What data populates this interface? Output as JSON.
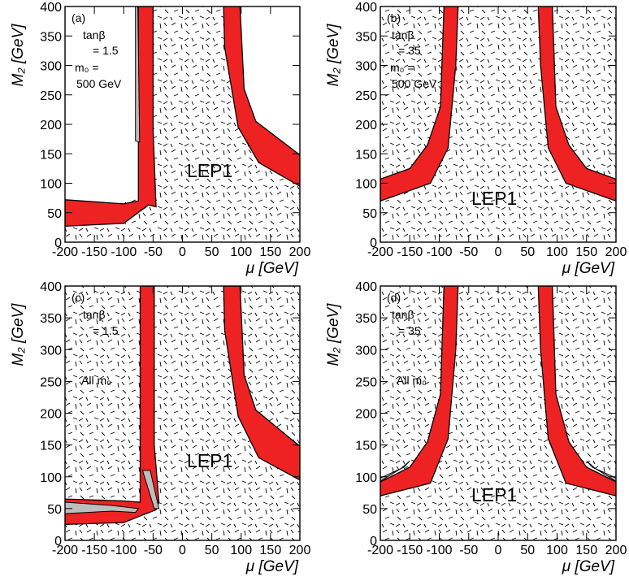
{
  "chart_data": [
    {
      "type": "area",
      "panel_label": "(a)",
      "notes": [
        "tanβ",
        "= 1.5",
        "m₀ =",
        "500 GeV"
      ],
      "region_label": "LEP1",
      "xlabel": "μ [GeV]",
      "ylabel": "M₂ [GeV]",
      "xlim": [
        -200,
        200
      ],
      "ylim": [
        0,
        400
      ],
      "xticks": [
        -200,
        -150,
        -100,
        -50,
        0,
        50,
        100,
        150,
        200
      ],
      "yticks": [
        0,
        50,
        100,
        150,
        200,
        250,
        300,
        350,
        400
      ],
      "lep1_region": [
        [
          -200,
          70
        ],
        [
          -100,
          67
        ],
        [
          -75,
          75
        ],
        [
          -75,
          400
        ],
        [
          80,
          400
        ],
        [
          85,
          300
        ],
        [
          95,
          200
        ],
        [
          130,
          140
        ],
        [
          200,
          95
        ],
        [
          200,
          0
        ],
        [
          -200,
          0
        ]
      ],
      "red_bands": [
        [
          [
            -200,
            72
          ],
          [
            -100,
            65
          ],
          [
            -75,
            70
          ],
          [
            -75,
            400
          ],
          [
            -50,
            400
          ],
          [
            -50,
            190
          ],
          [
            -45,
            60
          ],
          [
            -58,
            63
          ],
          [
            -100,
            32
          ],
          [
            -200,
            27
          ]
        ],
        [
          [
            70,
            400
          ],
          [
            98,
            400
          ],
          [
            105,
            260
          ],
          [
            125,
            205
          ],
          [
            200,
            148
          ],
          [
            200,
            95
          ],
          [
            130,
            135
          ],
          [
            95,
            195
          ],
          [
            72,
            330
          ]
        ]
      ],
      "grey_regions": [
        [
          [
            -80,
            400
          ],
          [
            -76,
            400
          ],
          [
            -73,
            170
          ],
          [
            -80,
            172
          ]
        ]
      ]
    },
    {
      "type": "area",
      "panel_label": "(b)",
      "notes": [
        "tanβ",
        "= 35",
        "m₀ =",
        "500 GeV"
      ],
      "region_label": "LEP1",
      "xlabel": "μ [GeV]",
      "ylabel": "M₂ [GeV]",
      "xlim": [
        -200,
        200
      ],
      "ylim": [
        0,
        400
      ],
      "xticks": [
        -200,
        -150,
        -100,
        -50,
        0,
        50,
        100,
        150,
        200
      ],
      "yticks": [
        0,
        50,
        100,
        150,
        200,
        250,
        300,
        350,
        400
      ],
      "red_bands": [
        [
          [
            -200,
            107
          ],
          [
            -150,
            125
          ],
          [
            -120,
            165
          ],
          [
            -98,
            230
          ],
          [
            -92,
            400
          ],
          [
            -68,
            400
          ],
          [
            -72,
            300
          ],
          [
            -85,
            160
          ],
          [
            -115,
            100
          ],
          [
            -200,
            70
          ]
        ],
        [
          [
            200,
            107
          ],
          [
            150,
            125
          ],
          [
            120,
            165
          ],
          [
            98,
            230
          ],
          [
            92,
            400
          ],
          [
            68,
            400
          ],
          [
            72,
            300
          ],
          [
            85,
            160
          ],
          [
            115,
            100
          ],
          [
            200,
            70
          ]
        ]
      ],
      "grey_regions": []
    },
    {
      "type": "area",
      "panel_label": "(c)",
      "notes": [
        "tanβ",
        "= 1.5",
        "All m₀"
      ],
      "region_label": "LEP1",
      "xlabel": "μ [GeV]",
      "ylabel": "M₂ [GeV]",
      "xlim": [
        -200,
        200
      ],
      "ylim": [
        0,
        400
      ],
      "xticks": [
        -200,
        -150,
        -100,
        -50,
        0,
        50,
        100,
        150,
        200
      ],
      "yticks": [
        0,
        50,
        100,
        150,
        200,
        250,
        300,
        350,
        400
      ],
      "red_bands": [
        [
          [
            -200,
            65
          ],
          [
            -100,
            62
          ],
          [
            -72,
            60
          ],
          [
            -72,
            400
          ],
          [
            -48,
            400
          ],
          [
            -48,
            150
          ],
          [
            -40,
            60
          ],
          [
            -45,
            48
          ],
          [
            -62,
            42
          ],
          [
            -100,
            28
          ],
          [
            -200,
            25
          ]
        ],
        [
          [
            70,
            400
          ],
          [
            98,
            400
          ],
          [
            105,
            260
          ],
          [
            125,
            205
          ],
          [
            200,
            148
          ],
          [
            200,
            95
          ],
          [
            130,
            130
          ],
          [
            95,
            195
          ],
          [
            72,
            330
          ]
        ]
      ],
      "grey_regions": [
        [
          [
            -200,
            60
          ],
          [
            -120,
            55
          ],
          [
            -75,
            50
          ],
          [
            -80,
            44
          ],
          [
            -120,
            46
          ],
          [
            -200,
            42
          ]
        ],
        [
          [
            -68,
            110
          ],
          [
            -55,
            110
          ],
          [
            -40,
            50
          ],
          [
            -48,
            50
          ]
        ]
      ]
    },
    {
      "type": "area",
      "panel_label": "(d)",
      "notes": [
        "tanβ",
        "= 35",
        "All m₀"
      ],
      "region_label": "LEP1",
      "xlabel": "μ [GeV]",
      "ylabel": "M₂ [GeV]",
      "xlim": [
        -200,
        200
      ],
      "ylim": [
        0,
        400
      ],
      "xticks": [
        -200,
        -150,
        -100,
        -50,
        0,
        50,
        100,
        150,
        200
      ],
      "yticks": [
        0,
        50,
        100,
        150,
        200,
        250,
        300,
        350,
        400
      ],
      "red_bands": [
        [
          [
            -200,
            92
          ],
          [
            -150,
            115
          ],
          [
            -120,
            155
          ],
          [
            -98,
            230
          ],
          [
            -92,
            400
          ],
          [
            -68,
            400
          ],
          [
            -72,
            300
          ],
          [
            -85,
            160
          ],
          [
            -115,
            90
          ],
          [
            -200,
            70
          ]
        ],
        [
          [
            200,
            92
          ],
          [
            150,
            115
          ],
          [
            120,
            155
          ],
          [
            98,
            230
          ],
          [
            92,
            400
          ],
          [
            68,
            400
          ],
          [
            72,
            300
          ],
          [
            85,
            160
          ],
          [
            115,
            90
          ],
          [
            200,
            70
          ]
        ]
      ],
      "grey_regions": [
        [
          [
            -200,
            98
          ],
          [
            -160,
            115
          ],
          [
            -150,
            125
          ],
          [
            -165,
            113
          ],
          [
            -200,
            93
          ]
        ],
        [
          [
            200,
            98
          ],
          [
            160,
            115
          ],
          [
            150,
            125
          ],
          [
            165,
            113
          ],
          [
            200,
            93
          ]
        ]
      ]
    }
  ]
}
